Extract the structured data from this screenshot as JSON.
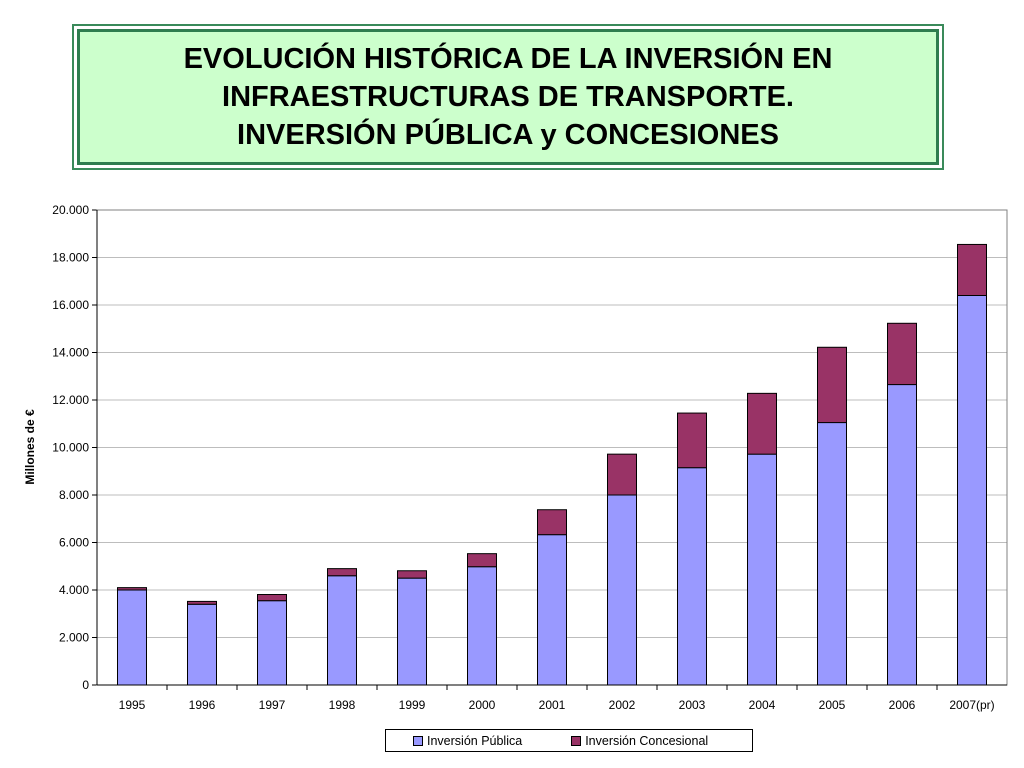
{
  "title": {
    "lines": [
      "EVOLUCIÓN HISTÓRICA DE LA INVERSIÓN EN",
      "INFRAESTRUCTURAS DE TRANSPORTE.",
      "INVERSIÓN PÚBLICA y CONCESIONES"
    ]
  },
  "legend": {
    "publica": "Inversión Pública",
    "concesional": "Inversión Concesional"
  },
  "colors": {
    "publica": "#9999ff",
    "concesional": "#993366",
    "title_bg": "#ccffcc",
    "title_border": "#2f7d4f"
  },
  "chart_data": {
    "type": "bar",
    "stacked": true,
    "categories": [
      "1995",
      "1996",
      "1997",
      "1998",
      "1999",
      "2000",
      "2001",
      "2002",
      "2003",
      "2004",
      "2005",
      "2006",
      "2007(pr)"
    ],
    "series": [
      {
        "name": "Inversión Pública",
        "values": [
          4000,
          3400,
          3550,
          4600,
          4500,
          4980,
          6330,
          8000,
          9150,
          9720,
          11050,
          12650,
          16400
        ]
      },
      {
        "name": "Inversión Concesional",
        "values": [
          100,
          120,
          260,
          300,
          310,
          550,
          1050,
          1720,
          2300,
          2560,
          3170,
          2580,
          2150
        ]
      }
    ],
    "ylabel": "Millones de €",
    "xlabel": "",
    "ylim": [
      0,
      20000
    ],
    "yticks": [
      "0",
      "2.000",
      "4.000",
      "6.000",
      "8.000",
      "10.000",
      "12.000",
      "14.000",
      "16.000",
      "18.000",
      "20.000"
    ],
    "grid": true,
    "legend_position": "bottom"
  }
}
